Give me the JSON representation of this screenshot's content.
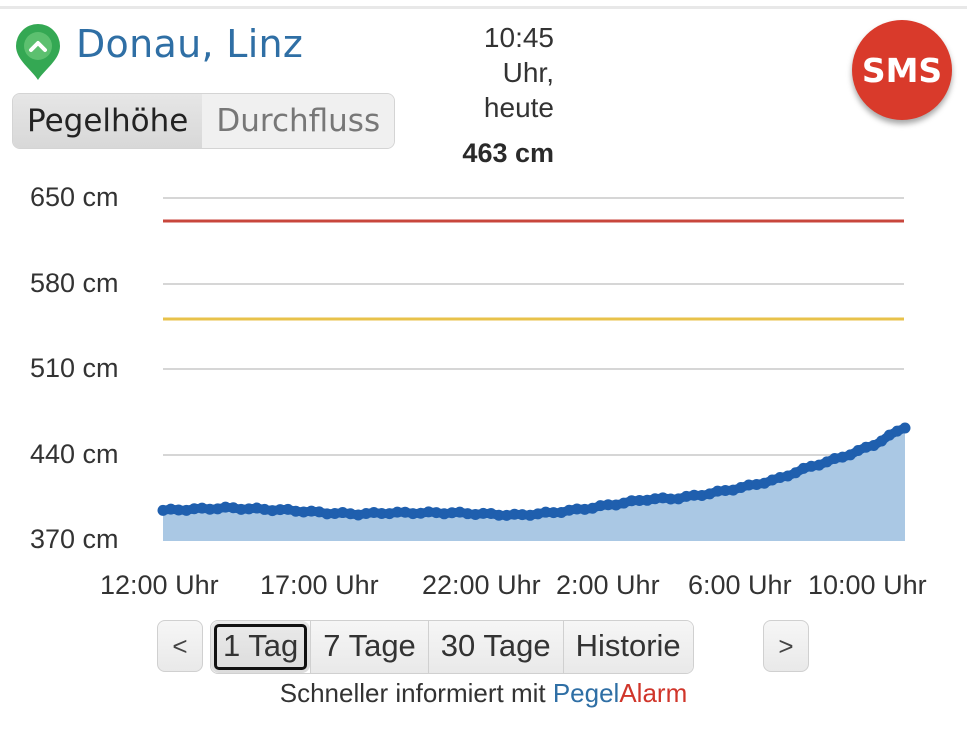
{
  "header": {
    "station_title": "Donau, Linz",
    "trend_icon": "chevron-up-pin-icon",
    "trend_color": "#34a853",
    "time_line1": "10:45",
    "time_line2": "Uhr,",
    "time_line3": "heute",
    "current_value": "463 cm",
    "sms_button": "SMS"
  },
  "toggle": {
    "options": [
      {
        "label": "Pegelhöhe",
        "active": true
      },
      {
        "label": "Durchfluss",
        "active": false
      }
    ]
  },
  "range_nav": {
    "prev": "<",
    "next": ">",
    "options": [
      {
        "label": "1 Tag",
        "selected": true
      },
      {
        "label": "7 Tage",
        "selected": false
      },
      {
        "label": "30 Tage",
        "selected": false
      },
      {
        "label": "Historie",
        "selected": false
      }
    ]
  },
  "footer": {
    "prefix": "Schneller informiert mit ",
    "brand_a": "Pegel",
    "brand_b": "Alarm"
  },
  "colors": {
    "title": "#2f6fa5",
    "line": "#1f5fae",
    "area": "#aac8e4",
    "warn_red": "#c8463c",
    "warn_yellow": "#e8c24a",
    "sms": "#d93a2b"
  },
  "chart_data": {
    "type": "area",
    "title": "Pegelhöhe Donau, Linz (1 Tag)",
    "xlabel": "",
    "ylabel": "cm",
    "ylim": [
      370,
      650
    ],
    "y_ticks": [
      "650 cm",
      "580 cm",
      "510 cm",
      "440 cm",
      "370 cm"
    ],
    "x_ticks": [
      "12:00 Uhr",
      "17:00 Uhr",
      "22:00 Uhr",
      "2:00 Uhr",
      "6:00 Uhr",
      "10:00 Uhr"
    ],
    "grid": true,
    "thresholds": [
      {
        "name": "red warning level",
        "value": 632,
        "color": "#c8463c"
      },
      {
        "name": "yellow warning level",
        "value": 552,
        "color": "#e8c24a"
      }
    ],
    "series": [
      {
        "name": "Pegelhöhe",
        "x": [
          "12:00",
          "13:00",
          "14:00",
          "15:00",
          "16:00",
          "17:00",
          "18:00",
          "19:00",
          "20:00",
          "21:00",
          "22:00",
          "23:00",
          "0:00",
          "1:00",
          "2:00",
          "3:00",
          "4:00",
          "5:00",
          "6:00",
          "7:00",
          "8:00",
          "9:00",
          "10:00",
          "10:45"
        ],
        "values": [
          395,
          396,
          397,
          396,
          395,
          393,
          392,
          393,
          393,
          393,
          392,
          391,
          393,
          396,
          400,
          404,
          405,
          409,
          414,
          420,
          430,
          438,
          448,
          463
        ]
      }
    ]
  }
}
